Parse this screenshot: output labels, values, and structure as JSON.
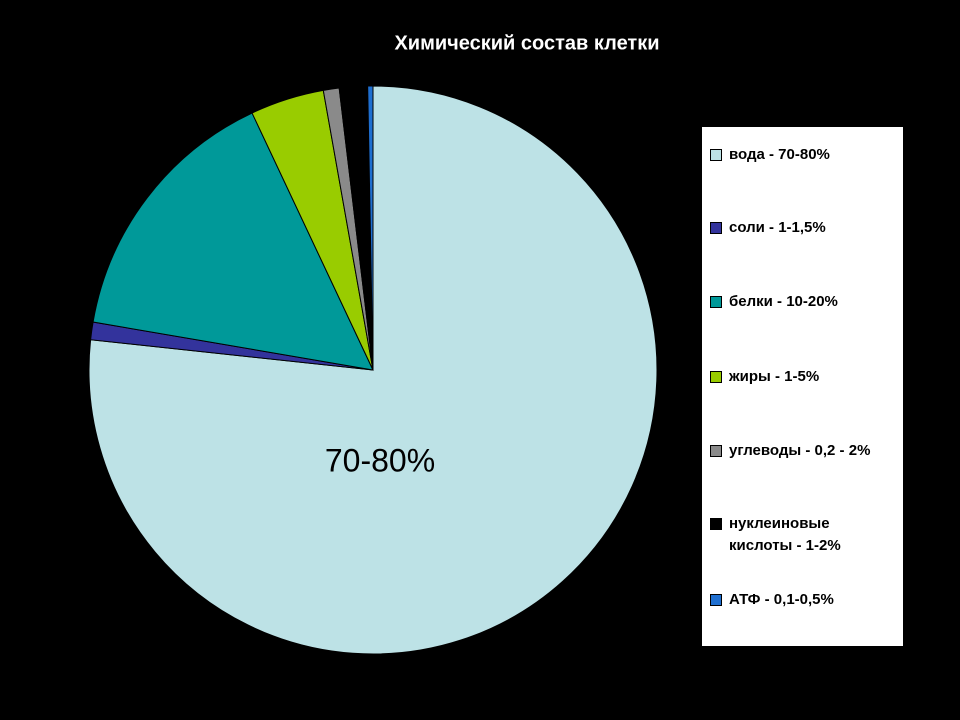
{
  "chart_data": {
    "type": "pie",
    "title": "Химический состав клетки",
    "categories": [
      "вода - 70-80%",
      "соли - 1-1,5%",
      "белки - 10-20%",
      "жиры - 1-5%",
      "углеводы - 0,2 - 2%",
      "нуклеиновые кислоты - 1-2%",
      "АТФ - 0,1-0,5%"
    ],
    "values": [
      76.7,
      1,
      15.3,
      4.2,
      0.9,
      1.6,
      0.3
    ],
    "colors": [
      "#bde2e6",
      "#33339c",
      "#009999",
      "#99cc00",
      "#8a8a8a",
      "#000000",
      "#1f6fd0"
    ],
    "annotation": "70-80%",
    "legend": "right"
  }
}
